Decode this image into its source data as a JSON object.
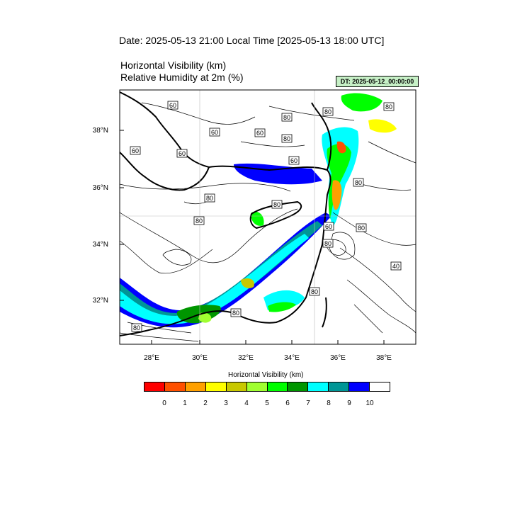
{
  "header": {
    "date_line": "Date: 2025-05-13  21:00 Local Time [2025-05-13  18:00 UTC]",
    "title_1": "Horizontal Visibility   (km)",
    "title_2": "Relative Humidity at 2m   (%)",
    "dt_label": "DT: 2025-05-12_00:00:00"
  },
  "map": {
    "lat_labels": [
      "38°N",
      "36°N",
      "34°N",
      "32°N"
    ],
    "lon_labels": [
      "28°E",
      "30°E",
      "32°E",
      "34°E",
      "36°E",
      "38°E"
    ],
    "contour_labels": [
      "60",
      "60",
      "60",
      "60",
      "60",
      "80",
      "80",
      "80",
      "80",
      "80",
      "80",
      "80",
      "80",
      "60",
      "80",
      "80",
      "60",
      "40",
      "80",
      "80",
      "80"
    ]
  },
  "colorbar": {
    "title": "Horizontal Visibility  (km)",
    "tick_labels": [
      "0",
      "1",
      "2",
      "3",
      "4",
      "5",
      "6",
      "7",
      "8",
      "9",
      "10"
    ],
    "colors": [
      "#ff0000",
      "#ff5000",
      "#ffa000",
      "#ffff00",
      "#c8c800",
      "#a0ff30",
      "#00ff00",
      "#009600",
      "#00ffff",
      "#009696",
      "#0000ff",
      "#ffffff"
    ]
  }
}
